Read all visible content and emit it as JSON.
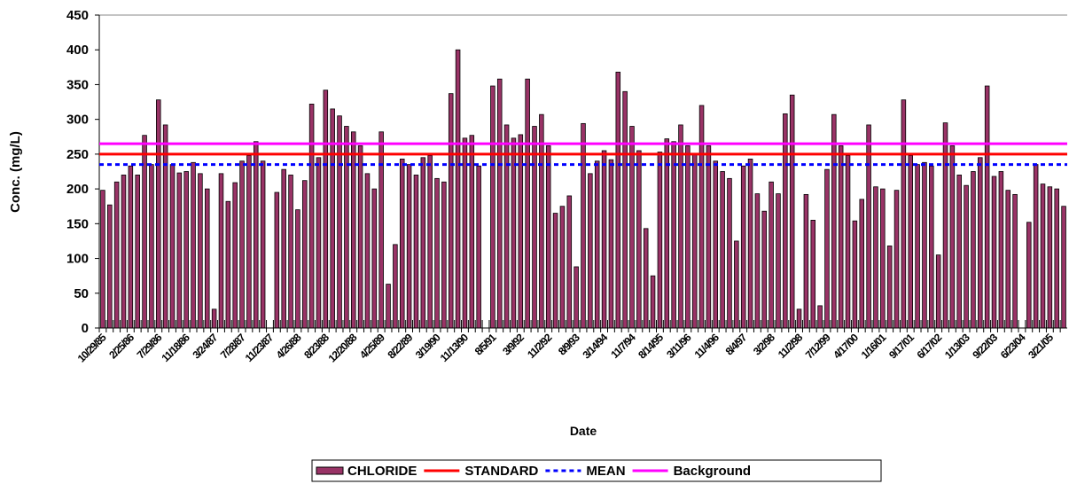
{
  "chart_data": {
    "type": "bar",
    "y_label": "Conc. (mg/L)",
    "x_label": "Date",
    "series_name": "CHLORIDE",
    "color": "#993366",
    "ylim": [
      0,
      450
    ],
    "yticks": [
      0,
      50,
      100,
      150,
      200,
      250,
      300,
      350,
      400,
      450
    ],
    "categories": [
      "10/29/85",
      null,
      null,
      null,
      "2/25/86",
      null,
      null,
      null,
      "7/29/86",
      null,
      null,
      null,
      "11/18/86",
      null,
      null,
      null,
      "3/24/87",
      null,
      null,
      null,
      "7/28/87",
      null,
      null,
      null,
      "11/23/87",
      null,
      null,
      null,
      "4/26/88",
      null,
      null,
      null,
      "8/23/88",
      null,
      null,
      null,
      "12/20/88",
      null,
      null,
      null,
      "4/25/89",
      null,
      null,
      null,
      "8/22/89",
      null,
      null,
      null,
      "3/19/90",
      null,
      null,
      null,
      "11/13/90",
      null,
      null,
      null,
      "8/5/91",
      null,
      null,
      null,
      "3/9/92",
      null,
      null,
      null,
      "11/2/92",
      null,
      null,
      null,
      "8/9/93",
      null,
      null,
      null,
      "3/14/94",
      null,
      null,
      null,
      "11/7/94",
      null,
      null,
      null,
      "8/14/95",
      null,
      null,
      null,
      "3/11/96",
      null,
      null,
      null,
      "11/4/96",
      null,
      null,
      null,
      "8/4/97",
      null,
      null,
      null,
      "3/2/98",
      null,
      null,
      null,
      "11/2/98",
      null,
      null,
      null,
      "7/12/99",
      null,
      null,
      null,
      "4/17/00",
      null,
      null,
      null,
      "1/16/01",
      null,
      null,
      null,
      "9/17/01",
      null,
      null,
      null,
      "6/17/02",
      null,
      null,
      null,
      "1/13/03",
      null,
      null,
      null,
      "9/22/03",
      null,
      null,
      null,
      "6/23/04",
      null,
      null,
      null,
      "3/21/05",
      null,
      null
    ],
    "values": [
      198,
      177,
      210,
      220,
      233,
      220,
      277,
      235,
      328,
      292,
      235,
      223,
      225,
      238,
      222,
      200,
      27,
      222,
      182,
      209,
      240,
      248,
      268,
      240,
      null,
      195,
      228,
      220,
      170,
      212,
      322,
      245,
      342,
      315,
      305,
      290,
      282,
      262,
      222,
      200,
      282,
      63,
      120,
      243,
      235,
      220,
      245,
      248,
      215,
      210,
      337,
      400,
      273,
      277,
      233,
      null,
      348,
      358,
      292,
      273,
      278,
      358,
      290,
      307,
      262,
      165,
      175,
      190,
      88,
      294,
      222,
      240,
      255,
      242,
      368,
      340,
      290,
      255,
      143,
      75,
      253,
      272,
      268,
      292,
      262,
      250,
      320,
      262,
      240,
      225,
      215,
      125,
      233,
      243,
      193,
      168,
      210,
      193,
      308,
      335,
      27,
      192,
      155,
      32,
      228,
      307,
      262,
      248,
      154,
      185,
      292,
      203,
      200,
      118,
      198,
      328,
      248,
      235,
      238,
      233,
      105,
      295,
      262,
      220,
      205,
      225,
      245,
      348,
      218,
      225,
      198,
      192,
      null,
      152,
      235,
      207,
      203,
      200,
      175
    ],
    "reference_lines": [
      {
        "name": "STANDARD",
        "color": "#ff0000",
        "value": 250,
        "dashed": false
      },
      {
        "name": "MEAN",
        "color": "#0000ff",
        "value": 235,
        "dashed": true
      },
      {
        "name": "Background",
        "color": "#ff00ff",
        "value": 265,
        "dashed": false
      }
    ]
  }
}
